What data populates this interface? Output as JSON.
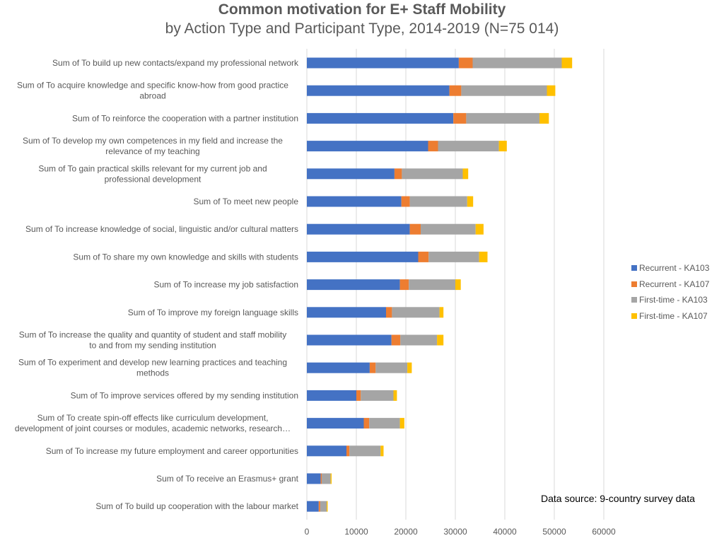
{
  "title": "Common motivation for E+ Staff Mobility",
  "subtitle": "by Action Type and Participant Type, 2014-2019 (N=75 014)",
  "source_note": "Data source: 9-country survey data",
  "colors": {
    "recurrent_ka103": "#4472C4",
    "recurrent_ka107": "#ED7D31",
    "firsttime_ka103": "#A5A5A5",
    "firsttime_ka107": "#FFC000",
    "grid": "#D9D9D9"
  },
  "chart_data": {
    "type": "bar",
    "orientation": "horizontal",
    "stacked": true,
    "title": "Common motivation for E+ Staff Mobility",
    "subtitle": "by Action Type and Participant Type, 2014-2019 (N=75 014)",
    "xlim": [
      0,
      60000
    ],
    "xticks": [
      0,
      10000,
      20000,
      30000,
      40000,
      50000,
      60000
    ],
    "grid": true,
    "legend_position": "right",
    "categories": [
      "Sum of To build up new contacts/expand my professional network",
      "Sum of To acquire knowledge and specific know-how from good practice abroad",
      "Sum of To reinforce the cooperation with a partner institution",
      "Sum of To develop my own competences in my field and increase the relevance of my teaching",
      "Sum of To gain practical skills relevant for my current job and professional development",
      "Sum of To meet new people",
      "Sum of To increase knowledge of social, linguistic and/or cultural matters",
      "Sum of To share my own knowledge and skills with students",
      "Sum of To increase my job satisfaction",
      "Sum of To improve my foreign language skills",
      "Sum of To increase the quality and quantity of student and staff mobility to and from my sending institution",
      "Sum of To experiment and develop new learning practices and teaching methods",
      "Sum of To improve services offered by my sending institution",
      "Sum of To create spin-off effects like curriculum development, development of joint courses or modules, academic networks, research…",
      "Sum of To increase my future employment and career opportunities",
      "Sum of To receive an Erasmus+ grant",
      "Sum of To build up cooperation with the labour market"
    ],
    "category_lines": [
      [
        "Sum of To build up new contacts/expand my professional network"
      ],
      [
        "Sum of To acquire knowledge and specific know-how from good practice",
        "abroad"
      ],
      [
        "Sum of To reinforce the cooperation with a partner institution"
      ],
      [
        "Sum of To develop my own competences in my field and increase the",
        "relevance of my teaching"
      ],
      [
        "Sum of To gain practical skills relevant for my current job and",
        "professional development"
      ],
      [
        "Sum of To meet new people"
      ],
      [
        "Sum of To increase knowledge of social, linguistic and/or cultural matters"
      ],
      [
        "Sum of To share my own knowledge and skills with students"
      ],
      [
        "Sum of To increase my job satisfaction"
      ],
      [
        "Sum of To improve my foreign language skills"
      ],
      [
        "Sum of To increase the quality and quantity of student and staff mobility",
        "to and from my sending institution"
      ],
      [
        "Sum of To experiment and develop new learning practices and teaching",
        "methods"
      ],
      [
        "Sum of To improve services offered by my sending institution"
      ],
      [
        "Sum of To create spin-off effects like curriculum development,",
        "development of joint courses or modules, academic networks, research…"
      ],
      [
        "Sum of To increase my future employment and career opportunities"
      ],
      [
        "Sum of To receive an Erasmus+ grant"
      ],
      [
        "Sum of To build up cooperation with the labour market"
      ]
    ],
    "series": [
      {
        "name": "Recurrent - KA103",
        "color_key": "recurrent_ka103",
        "values": [
          30700,
          28800,
          29600,
          24500,
          17700,
          19100,
          20800,
          22500,
          18800,
          16000,
          17100,
          12700,
          10000,
          11500,
          8000,
          2800,
          2400
        ]
      },
      {
        "name": "Recurrent - KA107",
        "color_key": "recurrent_ka107",
        "values": [
          2800,
          2400,
          2600,
          2000,
          1500,
          1700,
          2200,
          2100,
          1800,
          1200,
          1800,
          1200,
          900,
          1100,
          600,
          200,
          300
        ]
      },
      {
        "name": "First-time - KA103",
        "color_key": "firsttime_ka103",
        "values": [
          18000,
          17300,
          14800,
          12300,
          12300,
          11600,
          11100,
          10200,
          9400,
          9600,
          7400,
          6400,
          6600,
          6200,
          6300,
          1800,
          1300
        ]
      },
      {
        "name": "First-time - KA107",
        "color_key": "firsttime_ka107",
        "values": [
          2100,
          1700,
          1900,
          1600,
          1100,
          1200,
          1600,
          1700,
          1100,
          800,
          1300,
          900,
          700,
          900,
          600,
          200,
          200
        ]
      }
    ]
  }
}
